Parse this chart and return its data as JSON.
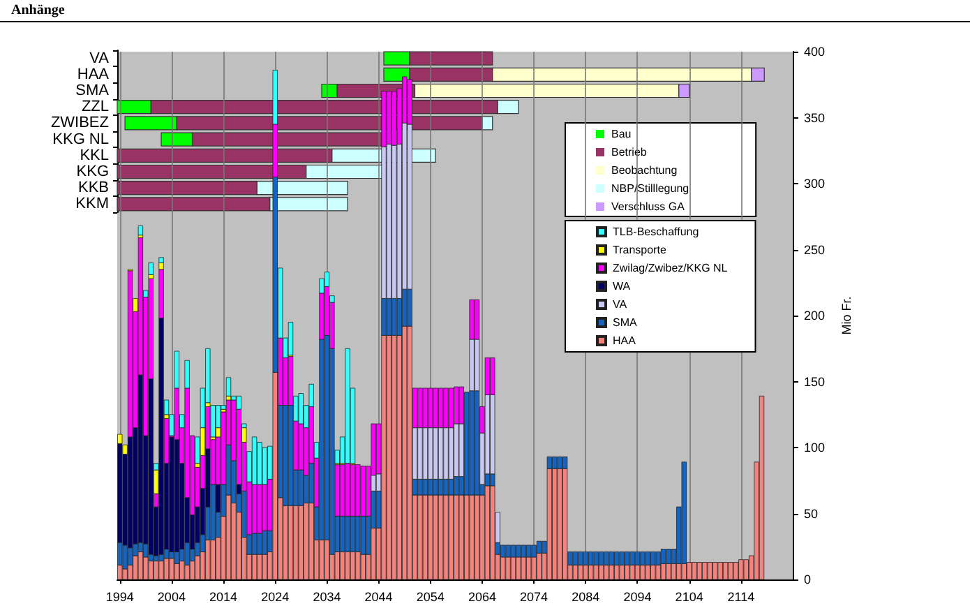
{
  "chart_data": [
    {
      "type": "bar",
      "title": "Anhänge",
      "ylabel": "Mio Fr.",
      "stacked": true,
      "grid": "x",
      "legend": "right",
      "x": [
        1994,
        1995,
        1996,
        1997,
        1998,
        1999,
        2000,
        2001,
        2002,
        2003,
        2004,
        2005,
        2006,
        2007,
        2008,
        2009,
        2010,
        2011,
        2012,
        2013,
        2014,
        2015,
        2016,
        2017,
        2018,
        2019,
        2020,
        2021,
        2022,
        2023,
        2024,
        2025,
        2026,
        2027,
        2028,
        2029,
        2030,
        2031,
        2032,
        2033,
        2034,
        2035,
        2036,
        2037,
        2038,
        2039,
        2040,
        2041,
        2042,
        2043,
        2044,
        2045,
        2046,
        2047,
        2048,
        2049,
        2050,
        2051,
        2052,
        2053,
        2054,
        2055,
        2056,
        2057,
        2058,
        2059,
        2060,
        2061,
        2062,
        2063,
        2064,
        2065,
        2066,
        2067,
        2068,
        2069,
        2070,
        2071,
        2072,
        2073,
        2074,
        2075,
        2076,
        2077,
        2078,
        2079,
        2080,
        2081,
        2082,
        2083,
        2084,
        2085,
        2086,
        2087,
        2088,
        2089,
        2090,
        2091,
        2092,
        2093,
        2094,
        2095,
        2096,
        2097,
        2098,
        2099,
        2100,
        2101,
        2102,
        2103,
        2104,
        2105,
        2106,
        2107,
        2108,
        2109,
        2110,
        2111,
        2112,
        2113,
        2114,
        2115,
        2116,
        2117,
        2118
      ],
      "xlim": [
        1993.5,
        2124
      ],
      "xticks": [
        1994,
        2004,
        2014,
        2024,
        2034,
        2044,
        2054,
        2064,
        2074,
        2084,
        2094,
        2104,
        2114
      ],
      "ylim": [
        0,
        400
      ],
      "yticks": [
        0,
        50,
        100,
        150,
        200,
        250,
        300,
        350,
        400
      ],
      "series": [
        {
          "name": "HAA",
          "color": "#f4837d",
          "values": [
            11,
            8,
            11,
            18,
            21,
            17,
            14,
            14,
            14,
            16,
            16,
            12,
            14,
            11,
            14,
            18,
            21,
            30,
            30,
            32,
            48,
            64,
            58,
            51,
            32,
            19,
            19,
            19,
            19,
            21,
            157,
            62,
            56,
            56,
            56,
            56,
            58,
            58,
            30,
            30,
            30,
            19,
            21,
            21,
            21,
            21,
            21,
            19,
            19,
            39,
            39,
            185,
            185,
            185,
            185,
            192,
            192,
            64,
            64,
            64,
            64,
            64,
            64,
            64,
            64,
            64,
            64,
            64,
            64,
            64,
            64,
            71,
            71,
            19,
            17,
            17,
            17,
            17,
            17,
            17,
            17,
            20,
            20,
            84,
            84,
            84,
            84,
            11,
            11,
            11,
            11,
            11,
            11,
            11,
            11,
            11,
            11,
            11,
            11,
            11,
            11,
            11,
            11,
            11,
            11,
            12,
            12,
            12,
            12,
            12,
            13,
            13,
            13,
            13,
            13,
            13,
            13,
            13,
            13,
            13,
            15,
            15,
            18,
            89,
            139
          ]
        },
        {
          "name": "SMA",
          "color": "#1565c0",
          "values": [
            17,
            18,
            13,
            9,
            7,
            10,
            5,
            4,
            5,
            7,
            5,
            9,
            9,
            17,
            9,
            10,
            13,
            25,
            42,
            19,
            24,
            38,
            32,
            14,
            35,
            15,
            16,
            16,
            18,
            16,
            148,
            70,
            76,
            76,
            27,
            27,
            21,
            30,
            25,
            152,
            155,
            156,
            27,
            27,
            27,
            27,
            27,
            29,
            29,
            28,
            28,
            28,
            28,
            28,
            28,
            28,
            28,
            12,
            12,
            12,
            12,
            12,
            12,
            12,
            12,
            14,
            14,
            78,
            79,
            79,
            8,
            9,
            9,
            9,
            9,
            9,
            9,
            9,
            9,
            9,
            9,
            9,
            9,
            9,
            9,
            9,
            9,
            10,
            10,
            10,
            10,
            10,
            10,
            10,
            10,
            10,
            10,
            10,
            10,
            10,
            10,
            10,
            10,
            10,
            10,
            11,
            11,
            11,
            43,
            77,
            0,
            0,
            0,
            0,
            0,
            0,
            0,
            0,
            0,
            0,
            0,
            0,
            0,
            0,
            0
          ]
        },
        {
          "name": "VA",
          "color": "#c8c8f0",
          "values": [
            0,
            0,
            0,
            0,
            0,
            0,
            0,
            0,
            0,
            0,
            0,
            0,
            0,
            0,
            0,
            0,
            0,
            0,
            0,
            0,
            0,
            0,
            0,
            0,
            0,
            0,
            0,
            0,
            0,
            0,
            0,
            0,
            0,
            0,
            0,
            0,
            0,
            0,
            0,
            0,
            0,
            0,
            0,
            0,
            0,
            0,
            0,
            0,
            0,
            12,
            13,
            115,
            117,
            116,
            117,
            126,
            125,
            39,
            39,
            39,
            39,
            39,
            39,
            39,
            39,
            40,
            40,
            0,
            39,
            39,
            39,
            60,
            60,
            23,
            0,
            0,
            0,
            0,
            0,
            0,
            0,
            0,
            0,
            0,
            0,
            0,
            0,
            0,
            0,
            0,
            0,
            0,
            0,
            0,
            0,
            0,
            0,
            0,
            0,
            0,
            0,
            0,
            0,
            0,
            0,
            0,
            0,
            0,
            0,
            0,
            0,
            0,
            0,
            0,
            0,
            0,
            0,
            0,
            0,
            0,
            0,
            0,
            0,
            0,
            0
          ]
        },
        {
          "name": "WA",
          "color": "#000066",
          "values": [
            75,
            69,
            84,
            88,
            127,
            82,
            133,
            37,
            179,
            65,
            87,
            85,
            65,
            34,
            26,
            27,
            35,
            44,
            0,
            21,
            0,
            0,
            0,
            7,
            0,
            0,
            0,
            0,
            0,
            0,
            0,
            0,
            0,
            0,
            0,
            0,
            0,
            0,
            0,
            0,
            0,
            0,
            0,
            0,
            0,
            0,
            0,
            0,
            0,
            0,
            0,
            0,
            0,
            0,
            0,
            0,
            0,
            0,
            0,
            0,
            0,
            0,
            0,
            0,
            0,
            0,
            0,
            0,
            0,
            0,
            0,
            0,
            0,
            0,
            0,
            0,
            0,
            0,
            0,
            0,
            0,
            0,
            0,
            0,
            0,
            0,
            0,
            0,
            0,
            0,
            0,
            0,
            0,
            0,
            0,
            0,
            0,
            0,
            0,
            0,
            0,
            0,
            0,
            0,
            0,
            0,
            0,
            0,
            0,
            0,
            0,
            0,
            0,
            0,
            0,
            0,
            0,
            0,
            0,
            0,
            0,
            0,
            0,
            0,
            0
          ]
        },
        {
          "name": "Zwilag/Zwibez/KKG NL",
          "color": "#ff00ff",
          "values": [
            0,
            0,
            126,
            88,
            104,
            105,
            76,
            10,
            37,
            34,
            1,
            39,
            27,
            83,
            60,
            30,
            25,
            32,
            34,
            36,
            55,
            34,
            46,
            57,
            37,
            40,
            37,
            37,
            35,
            39,
            40,
            51,
            36,
            37,
            37,
            35,
            36,
            43,
            37,
            35,
            37,
            35,
            39,
            39,
            40,
            39,
            39,
            38,
            38,
            39,
            38,
            42,
            40,
            41,
            42,
            35,
            34,
            30,
            30,
            30,
            30,
            30,
            30,
            30,
            30,
            28,
            28,
            0,
            30,
            30,
            20,
            28,
            28,
            0,
            0,
            0,
            0,
            0,
            0,
            0,
            0,
            0,
            0,
            0,
            0,
            0,
            0,
            0,
            0,
            0,
            0,
            0,
            0,
            0,
            0,
            0,
            0,
            0,
            0,
            0,
            0,
            0,
            0,
            0,
            0,
            0,
            0,
            0,
            0,
            0,
            0,
            0,
            0,
            0,
            0,
            0,
            0,
            0,
            0,
            0,
            0,
            0,
            0,
            0,
            0
          ]
        },
        {
          "name": "Transporte",
          "color": "#ffff00",
          "values": [
            7,
            7,
            1,
            10,
            2,
            0,
            3,
            18,
            5,
            3,
            0,
            0,
            0,
            0,
            0,
            3,
            21,
            3,
            2,
            7,
            2,
            3,
            0,
            0,
            11,
            0,
            0,
            0,
            0,
            0,
            0,
            0,
            0,
            1,
            0,
            0,
            0,
            0,
            0,
            0,
            0,
            0,
            1,
            1,
            0,
            1,
            0,
            0,
            0,
            0,
            0,
            0,
            0,
            0,
            0,
            0,
            0,
            0,
            0,
            0,
            0,
            0,
            0,
            0,
            0,
            0,
            0,
            0,
            0,
            0,
            0,
            0,
            0,
            0,
            0,
            0,
            0,
            0,
            0,
            0,
            0,
            0,
            0,
            0,
            0,
            0,
            0,
            0,
            0,
            0,
            0,
            0,
            0,
            0,
            0,
            0,
            0,
            0,
            0,
            0,
            0,
            0,
            0,
            0,
            0,
            0,
            0,
            0,
            0,
            0,
            0,
            0,
            0,
            0,
            0,
            0,
            0,
            0,
            0,
            0,
            0,
            0,
            0,
            0,
            0
          ]
        },
        {
          "name": "TLB-Beschaffung",
          "color": "#33ffff",
          "values": [
            0,
            0,
            0,
            0,
            7,
            5,
            9,
            5,
            4,
            11,
            16,
            28,
            10,
            21,
            0,
            20,
            30,
            41,
            24,
            17,
            3,
            14,
            3,
            10,
            3,
            23,
            36,
            32,
            28,
            25,
            41,
            53,
            15,
            25,
            19,
            23,
            17,
            17,
            12,
            11,
            11,
            5,
            10,
            20,
            87,
            57,
            0,
            0,
            0,
            0,
            0,
            0,
            0,
            0,
            0,
            0,
            0,
            0,
            0,
            0,
            0,
            0,
            0,
            0,
            0,
            0,
            0,
            0,
            0,
            0,
            0,
            0,
            0,
            0,
            0,
            0,
            0,
            0,
            0,
            0,
            0,
            0,
            0,
            0,
            0,
            0,
            0,
            0,
            0,
            0,
            0,
            0,
            0,
            0,
            0,
            0,
            0,
            0,
            0,
            0,
            0,
            0,
            0,
            0,
            0,
            0,
            0,
            0,
            0,
            0,
            0,
            0,
            0,
            0,
            0,
            0,
            0,
            0,
            0,
            0,
            0,
            0,
            0,
            0,
            0
          ]
        }
      ]
    },
    {
      "type": "bar",
      "orientation": "horizontal",
      "legend": "right",
      "tick_labels": "y",
      "categories": [
        "VA",
        "HAA",
        "SMA",
        "ZZL",
        "ZWIBEZ",
        "KKG NL",
        "KKL",
        "KKG",
        "KKB",
        "KKM"
      ],
      "xlim": [
        1993.5,
        2124
      ],
      "series": [
        {
          "name": "Bau",
          "color": "#00ff00",
          "base": [
            2045,
            2045,
            2033,
            1993.5,
            1995,
            2002,
            null,
            null,
            null,
            null
          ],
          "values": [
            5,
            5,
            3,
            6.5,
            10,
            6,
            null,
            null,
            null,
            null
          ]
        },
        {
          "name": "Betrieb",
          "color": "#993366",
          "base": [
            2050,
            2050,
            2036,
            2000,
            2005,
            2008,
            1993.5,
            1993.5,
            1993.5,
            1993.5
          ],
          "values": [
            16,
            16,
            15,
            67,
            59,
            37,
            41.5,
            36.5,
            27,
            29.5
          ]
        },
        {
          "name": "Beobachtung",
          "color": "#ffffcc",
          "base": [
            null,
            2066,
            2051,
            null,
            null,
            null,
            null,
            null,
            null,
            null
          ],
          "values": [
            null,
            50,
            51,
            null,
            null,
            null,
            null,
            null,
            null,
            null
          ]
        },
        {
          "name": "NBP/Stilllegung",
          "color": "#ccffff",
          "base": [
            null,
            null,
            null,
            2067,
            2064,
            null,
            2035,
            2030,
            2020.5,
            2023
          ],
          "values": [
            null,
            null,
            null,
            4,
            2,
            null,
            20,
            15,
            17.5,
            15
          ]
        },
        {
          "name": "Verschluss GA",
          "color": "#cc99ff",
          "base": [
            null,
            2116,
            2102,
            null,
            null,
            null,
            null,
            null,
            null,
            null
          ],
          "values": [
            null,
            2.5,
            2,
            null,
            null,
            null,
            null,
            null,
            null,
            null
          ]
        }
      ]
    }
  ]
}
